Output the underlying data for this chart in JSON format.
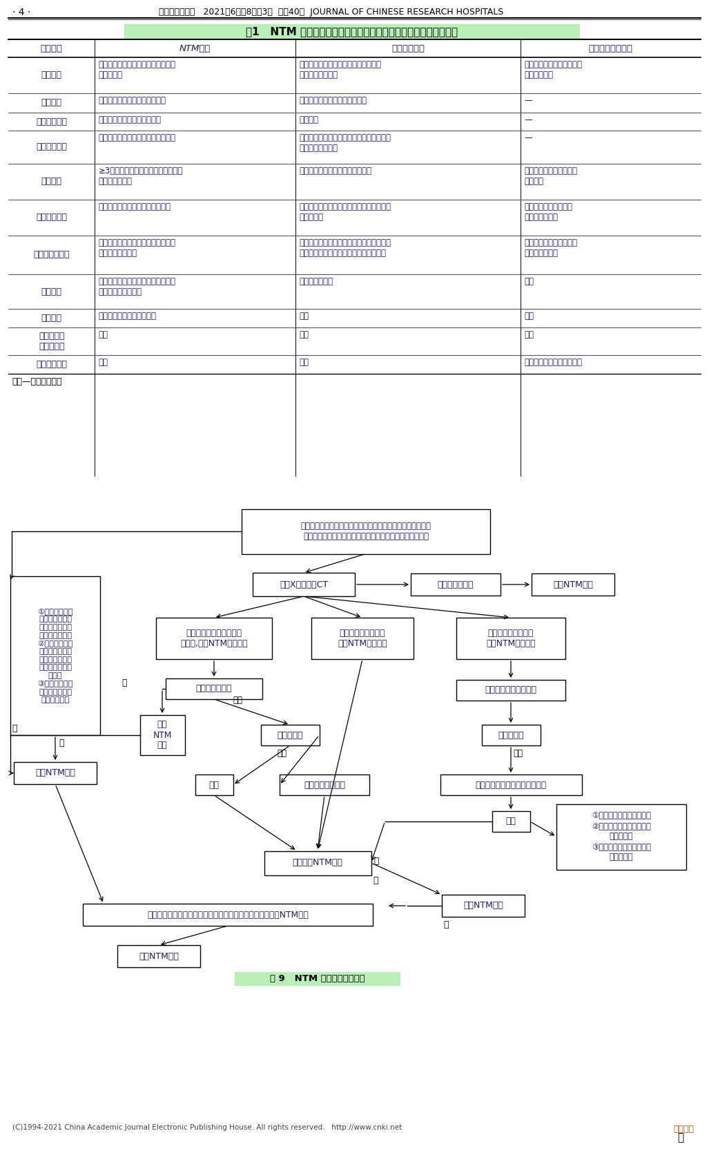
{
  "page_header": "· 4 ·",
  "journal_header": "中国研究型医院   2021年6月第8卷第3期  总第40期  JOURNAL OF CHINESE RESEARCH HOSPITALS",
  "table_title": "表1   NTM 肺病与继发性肺结核和支气管扩张并感染的影像表现鉴别",
  "col_headers": [
    "影像表现",
    "NTM肺病",
    "继发性肺结核",
    "支气管扩张并感染"
  ],
  "rows": [
    {
      "label": "常见征象",
      "col1": "空洞、支气管扩张、小叶中心结节、\n浸润性实变",
      "col2": "浸润性实变、气道播散灶、空洞、纤维\n条索、支气管扩张",
      "col3": "支气管扩张、细支气管炎、\n小叶中心结节"
    },
    {
      "label": "空洞分布",
      "col1": "双肺上叶为主，肺外周部分为主",
      "col2": "双肺上叶尖后段、下叶背段为主",
      "col3": "—"
    },
    {
      "label": "空洞形态特点",
      "col1": "薄壁多见，可发展为厚壁空洞",
      "col2": "厚壁多见",
      "col3": "—"
    },
    {
      "label": "空洞周围肺野",
      "col1": "浸润性病变少见、支气管播散灶少见",
      "col2": "常在浸润性病变内形成空洞，或空洞周围伴\n较多支气管播散灶",
      "col3": "—"
    },
    {
      "label": "支扶分布",
      "col1": "≥3个肺叶，可以中叶及舌段为主，也\n可无叶段倾向性",
      "col2": "以双肺上叶尖后段、下叶背段为主",
      "col3": "受累肺叶较少，以中叶、\n舌段多见"
    },
    {
      "label": "支扶形态特点",
      "col1": "柱状支扶为主，无周围肺结构扭曲",
      "col2": "牿拉性支气管扩张为主，伴周围纤维条索、\n肺结构扭曲",
      "col3": "柱状、囊状支扶可同时\n存在，无倾向性"
    },
    {
      "label": "浸润性病变特点",
      "col1": "分布广泛，以双肺上叶为主，可合并\n空洞、支气管扩张",
      "col2": "分布广泛，以双肺上叶尖后段、下叶背段为\n主，可合并空洞、纤维条索、支气管扩张",
      "col3": "分布以扩张支气管周围、\n叶段性分布为主"
    },
    {
      "label": "胸膜肥厚",
      "col1": "以肺内病变相邻部位胸膜增厚为主，\n基底部胸膜受累少见",
      "col2": "胸膜可广泛受累",
      "col3": "少见"
    },
    {
      "label": "胸腔积液",
      "col1": "少见，几乎均合并胸膜增厚",
      "col2": "常见",
      "col3": "少见"
    },
    {
      "label": "纵隔、肺门\n淥巴结肥大",
      "col1": "少见",
      "col2": "常见",
      "col3": "少见"
    },
    {
      "label": "肺内病变馒化",
      "col1": "少见",
      "col2": "常见",
      "col3": "扩张支气管管壁可广泛馒化"
    }
  ],
  "note": "注：—为无影像表现",
  "flowchart_caption": "图 9   NTM 肺病影像诊断流程",
  "footer": "(C)1994-2021 China Academic Journal Electronic Publishing House. All rights reserved.   http://www.cnki.net",
  "watermark": "熊猫放射",
  "bg_color": "#ffffff",
  "text_color": "#1a1a6e",
  "black": "#000000",
  "table_header_bg": "#b8f0b8",
  "caption_bg": "#b8f0b8"
}
